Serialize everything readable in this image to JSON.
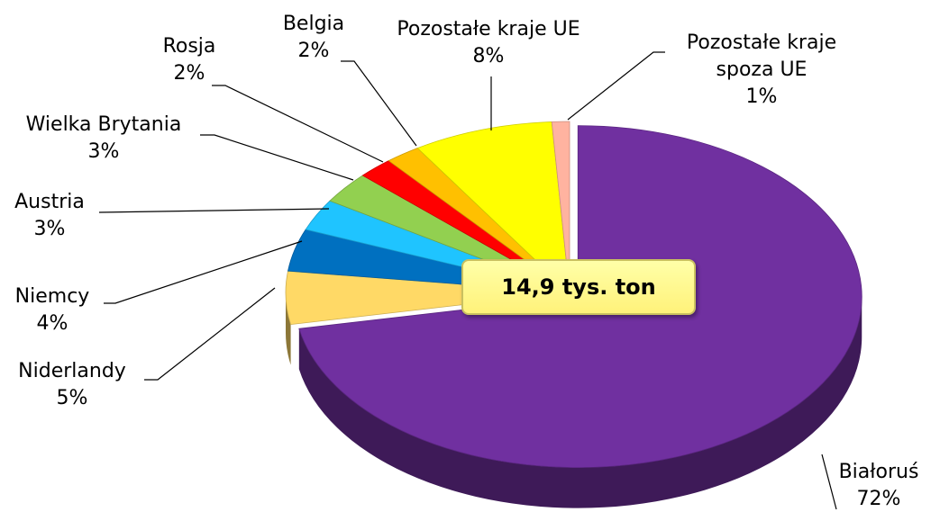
{
  "chart_data": {
    "type": "pie",
    "categories": [
      "Białoruś",
      "Niderlandy",
      "Niemcy",
      "Austria",
      "Wielka Brytania",
      "Rosja",
      "Belgia",
      "Pozostałe kraje UE",
      "Pozostałe kraje spoza UE"
    ],
    "values": [
      72,
      5,
      4,
      3,
      3,
      2,
      2,
      8,
      1
    ],
    "value_labels": [
      "72%",
      "5%",
      "4%",
      "3%",
      "3%",
      "2%",
      "2%",
      "8%",
      "1%"
    ],
    "colors": [
      "#7030a0",
      "#ffd966",
      "#0070c0",
      "#1fc4ff",
      "#92d050",
      "#ff0000",
      "#ffc000",
      "#ffff00",
      "#ffb3a0"
    ],
    "annotation": "14,9 tys. ton"
  }
}
